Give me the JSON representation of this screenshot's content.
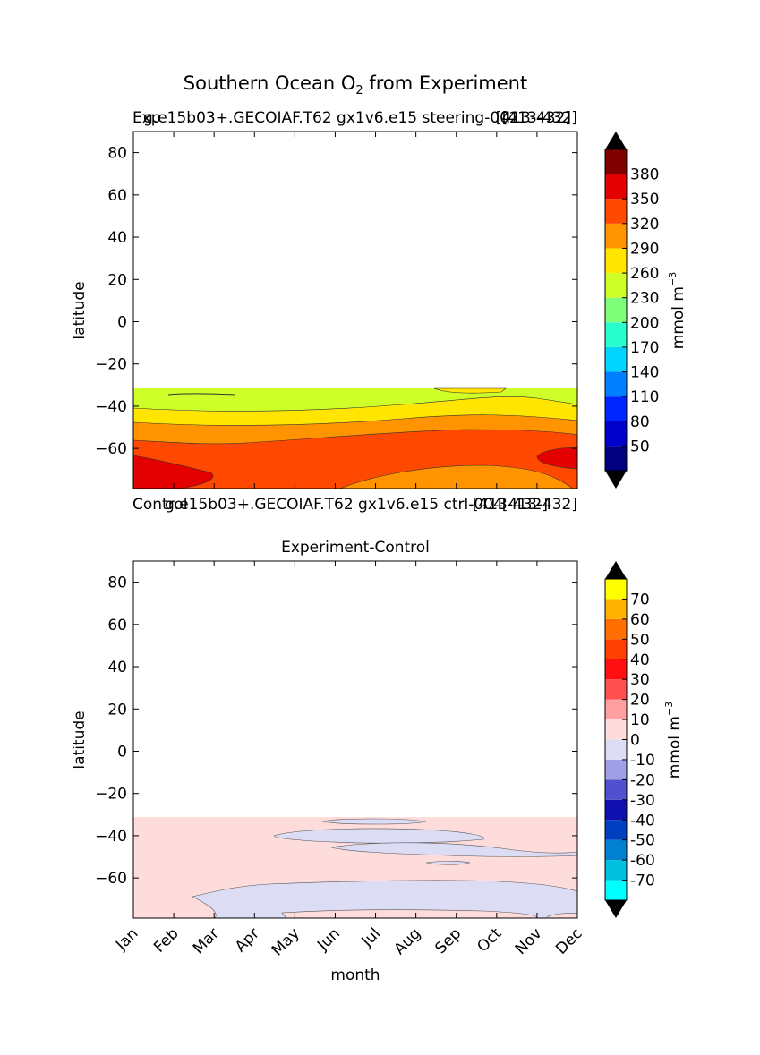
{
  "figure": {
    "title_main": "Southern Ocean O",
    "title_sub": "2",
    "title_tail": " from Experiment"
  },
  "chart_data": [
    {
      "type": "contour",
      "panel": "top",
      "header_left_1": "Exp",
      "header_left_2": "g.e15b03+.GECOIAF.T62 gx1v6.e15 steering-002",
      "header_right_1": "[413-432]",
      "header_right_2": "[413-432]",
      "bottom_left_1": "Control",
      "bottom_left_2": "g.e15b03+.GECOIAF.T62 gx1v6.e15 ctrl-004",
      "bottom_right_1": "[413-432]",
      "bottom_right_2": "[413-432]",
      "ylabel": "latitude",
      "yticks": [
        "80",
        "60",
        "40",
        "20",
        "0",
        "−20",
        "−40",
        "−60"
      ],
      "ylim": [
        -79,
        90
      ],
      "colorbar": {
        "label": "mmol m",
        "label_exp": "−3",
        "ticks": [
          "380",
          "350",
          "320",
          "290",
          "260",
          "230",
          "200",
          "170",
          "140",
          "110",
          "80",
          "50"
        ],
        "colors": [
          "#000080",
          "#0000cd",
          "#0026ff",
          "#0080ff",
          "#00d4ff",
          "#29ffce",
          "#7dff7a",
          "#ceff29",
          "#ffe500",
          "#ff9400",
          "#ff4800",
          "#e30000",
          "#800000"
        ],
        "extend": "both"
      },
      "bands": [
        {
          "level": "230-260",
          "color": "#ceff29"
        },
        {
          "level": "260-290",
          "color": "#ffe500"
        },
        {
          "level": "290-320",
          "color": "#ff9400"
        },
        {
          "level": "320-350",
          "color": "#ff4800"
        },
        {
          "level": "350-380",
          "color": "#e30000"
        }
      ],
      "data_extent_lat": [
        -79,
        -31
      ]
    },
    {
      "type": "contour",
      "panel": "bottom",
      "title": "Experiment-Control",
      "xlabel": "month",
      "ylabel": "latitude",
      "xticks": [
        "Jan",
        "Feb",
        "Mar",
        "Apr",
        "May",
        "Jun",
        "Jul",
        "Aug",
        "Sep",
        "Oct",
        "Nov",
        "Dec"
      ],
      "yticks": [
        "80",
        "60",
        "40",
        "20",
        "0",
        "−20",
        "−40",
        "−60"
      ],
      "ylim": [
        -79,
        90
      ],
      "colorbar": {
        "label": "mmol m",
        "label_exp": "−3",
        "ticks": [
          "70",
          "60",
          "50",
          "40",
          "30",
          "20",
          "10",
          "0",
          "-10",
          "-20",
          "-30",
          "-40",
          "-50",
          "-60",
          "-70"
        ],
        "colors": [
          "#00ffff",
          "#00c0e0",
          "#0080d0",
          "#0040c0",
          "#1010b0",
          "#5050d0",
          "#a0a0e8",
          "#dcdcf5",
          "#ffdcdc",
          "#ffa0a0",
          "#ff5050",
          "#ff1010",
          "#ff4000",
          "#ff7000",
          "#ffb000",
          "#ffff00"
        ],
        "extend": "both"
      },
      "bands": [
        {
          "level": "0-10",
          "color": "#ffdcdc"
        },
        {
          "level": "-10-0",
          "color": "#dcdcf5"
        }
      ],
      "data_extent_lat": [
        -79,
        -31
      ]
    }
  ]
}
